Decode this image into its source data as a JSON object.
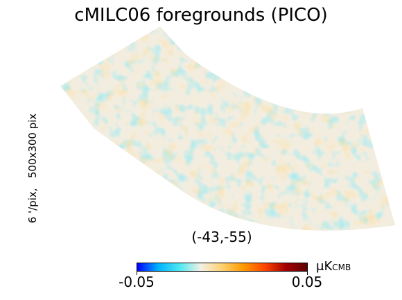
{
  "chart_data": {
    "type": "heatmap",
    "title": "cMILC06 foregrounds (PICO)",
    "side_label": "6 '/pix,   500x300 pix",
    "center_label": "(-43,-55)",
    "colorbar": {
      "min": -0.05,
      "max": 0.05,
      "min_label": "-0.05",
      "max_label": "0.05",
      "unit": "μK",
      "unit_sub": "CMB",
      "colormap": [
        "#0000ff",
        "#00b4ff",
        "#4ee8f0",
        "#f4f0e4",
        "#ffd070",
        "#ff9a00",
        "#ff4500",
        "#a40000",
        "#600000"
      ]
    },
    "map": {
      "projection": "cartesian sky patch (curved, part of a spherical projection)",
      "typical_range": [
        -0.03,
        0.03
      ]
    }
  }
}
